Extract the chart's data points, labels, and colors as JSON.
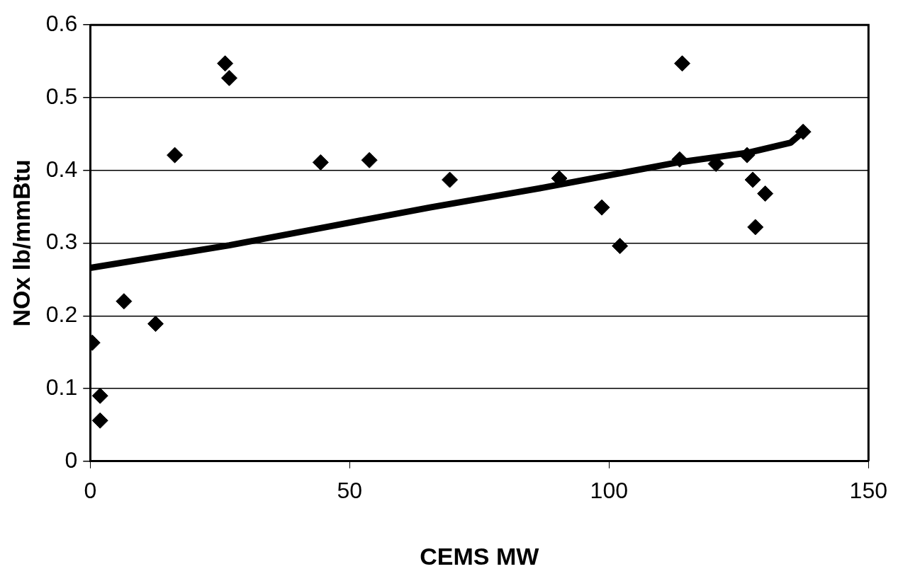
{
  "chart_data": {
    "type": "scatter",
    "xlabel": "CEMS MW",
    "ylabel": "NOx lb/mmBtu",
    "xlim": [
      0,
      150
    ],
    "xticks": [
      0,
      50,
      100,
      150
    ],
    "ylim": [
      0,
      0.6
    ],
    "yticks": [
      0,
      0.1,
      0.2,
      0.3,
      0.4,
      0.5,
      0.6
    ],
    "grid": "y",
    "series": [
      {
        "type": "scatter",
        "marker": "diamond",
        "color": "#000000",
        "x": [
          0.4,
          1.9,
          1.9,
          6.5,
          12.6,
          16.3,
          26.0,
          26.8,
          44.4,
          53.8,
          69.3,
          90.4,
          98.6,
          102.1,
          114.1,
          113.6,
          120.6,
          126.6,
          127.7,
          130.1,
          128.2,
          137.4
        ],
        "values": [
          0.163,
          0.09,
          0.056,
          0.22,
          0.189,
          0.421,
          0.547,
          0.527,
          0.411,
          0.414,
          0.387,
          0.389,
          0.349,
          0.296,
          0.547,
          0.415,
          0.409,
          0.421,
          0.387,
          0.368,
          0.322,
          0.453
        ]
      },
      {
        "type": "line",
        "marker": "none",
        "color": "#000000",
        "line_style": "solid",
        "x": [
          0,
          26.8,
          46.9,
          65.5,
          86.4,
          113.3,
          126.6,
          135,
          137.4
        ],
        "values": [
          0.266,
          0.297,
          0.324,
          0.349,
          0.375,
          0.411,
          0.424,
          0.438,
          0.453
        ]
      }
    ]
  }
}
